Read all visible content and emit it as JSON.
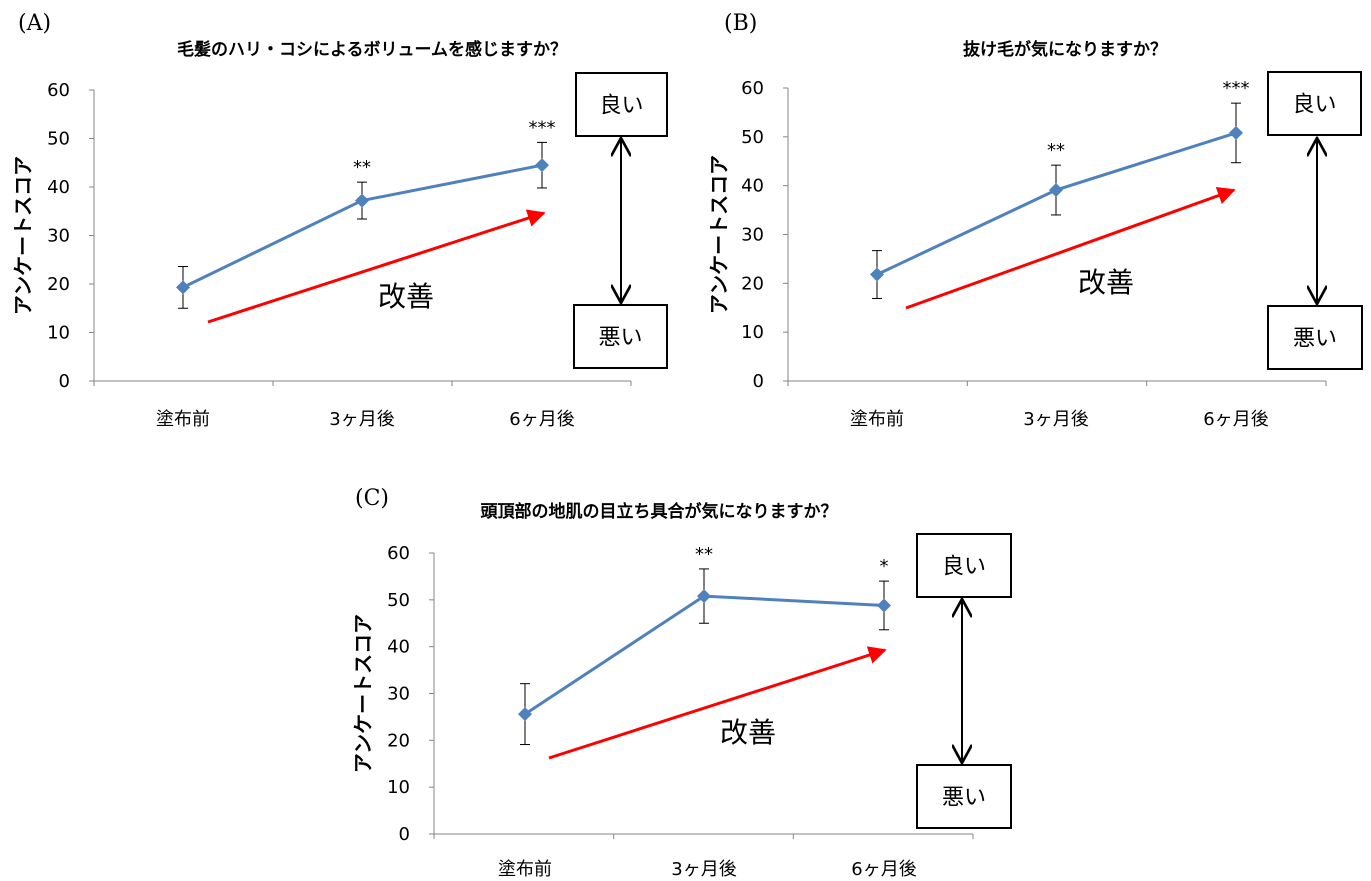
{
  "chart_data": [
    {
      "panel": "(A)",
      "type": "line",
      "title": "毛髪のハリ・コシによるボリュームを感じますか？",
      "ylabel": "アンケートスコア",
      "categories": [
        "塗布前",
        "3ヶ月後",
        "6ヶ月後"
      ],
      "values": [
        19.3,
        37.2,
        44.5
      ],
      "error": [
        4.3,
        3.8,
        4.7
      ],
      "significance": [
        "",
        "**",
        "***"
      ],
      "ylim": [
        0,
        60
      ],
      "yticks": [
        0,
        10,
        20,
        30,
        40,
        50,
        60
      ],
      "series_color": "#4f81bd",
      "annotation": "改善",
      "arrow_color": "#ff0000",
      "scale_high": "良い",
      "scale_low": "悪い"
    },
    {
      "panel": "(B)",
      "type": "line",
      "title": "抜け毛が気になりますか？",
      "ylabel": "アンケートスコア",
      "categories": [
        "塗布前",
        "3ヶ月後",
        "6ヶ月後"
      ],
      "values": [
        21.8,
        39.1,
        50.8
      ],
      "error": [
        4.9,
        5.1,
        6.1
      ],
      "significance": [
        "",
        "**",
        "***"
      ],
      "ylim": [
        0,
        60
      ],
      "yticks": [
        0,
        10,
        20,
        30,
        40,
        50,
        60
      ],
      "series_color": "#4f81bd",
      "annotation": "改善",
      "arrow_color": "#ff0000",
      "scale_high": "良い",
      "scale_low": "悪い"
    },
    {
      "panel": "(C)",
      "type": "line",
      "title": "頭頂部の地肌の目立ち具合が気になりますか？",
      "ylabel": "アンケートスコア",
      "categories": [
        "塗布前",
        "3ヶ月後",
        "6ヶ月後"
      ],
      "values": [
        25.6,
        50.8,
        48.8
      ],
      "error": [
        6.5,
        5.8,
        5.2
      ],
      "significance": [
        "",
        "**",
        "*"
      ],
      "ylim": [
        0,
        60
      ],
      "yticks": [
        0,
        10,
        20,
        30,
        40,
        50,
        60
      ],
      "series_color": "#4f81bd",
      "annotation": "改善",
      "arrow_color": "#ff0000",
      "scale_high": "良い",
      "scale_low": "悪い"
    }
  ]
}
